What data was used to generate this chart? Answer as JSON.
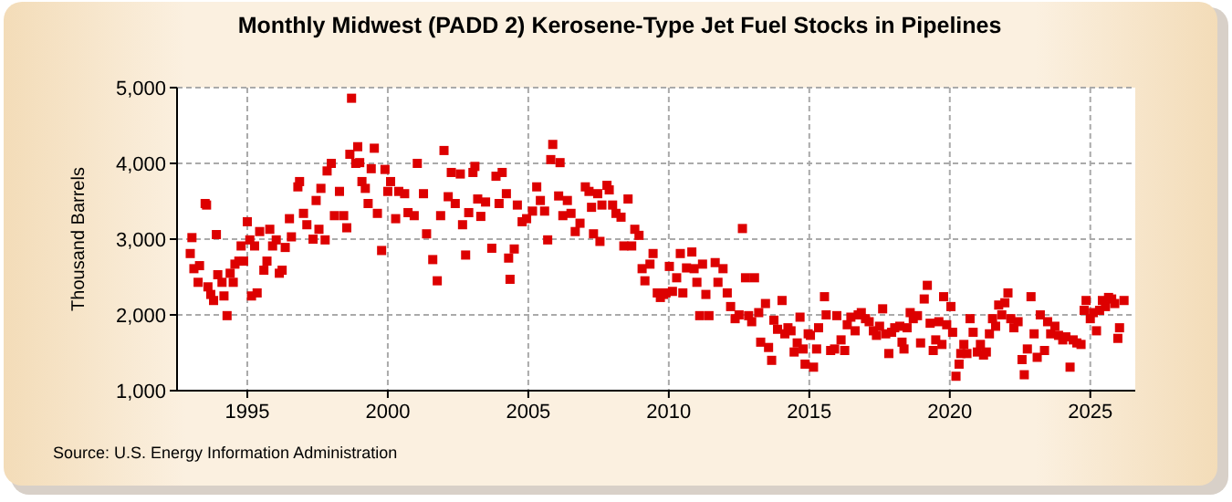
{
  "chart_data": {
    "type": "scatter",
    "title": "Monthly Midwest (PADD 2) Kerosene-Type Jet Fuel Stocks in Pipelines",
    "ylabel": "Thousand Barrels",
    "annotations": [
      "Source: U.S. Energy Information Administration"
    ],
    "xlim": [
      1992.5,
      2026.6
    ],
    "xticks": [
      1995,
      2000,
      2005,
      2010,
      2015,
      2020,
      2025
    ],
    "ylim": [
      1000,
      5000
    ],
    "yticks": [
      {
        "value": 1000,
        "label": "1,000"
      },
      {
        "value": 2000,
        "label": "2,000"
      },
      {
        "value": 3000,
        "label": "3,000"
      },
      {
        "value": 4000,
        "label": "4,000"
      },
      {
        "value": 5000,
        "label": "5,000"
      }
    ],
    "grid": true,
    "marker": "square",
    "series": [
      {
        "color": "#dd0000",
        "x": [
          1992.97,
          1993.03,
          1993.1,
          1993.25,
          1993.3,
          1993.5,
          1993.55,
          1993.6,
          1993.7,
          1993.8,
          1993.9,
          1993.95,
          1994.1,
          1994.17,
          1994.28,
          1994.39,
          1994.5,
          1994.56,
          1994.7,
          1994.78,
          1994.87,
          1995.0,
          1995.09,
          1995.15,
          1995.26,
          1995.35,
          1995.44,
          1995.59,
          1995.7,
          1995.8,
          1995.9,
          1996.03,
          1996.14,
          1996.24,
          1996.35,
          1996.5,
          1996.57,
          1996.8,
          1996.86,
          1997.0,
          1997.12,
          1997.34,
          1997.45,
          1997.55,
          1997.62,
          1997.77,
          1997.84,
          1997.99,
          1998.1,
          1998.28,
          1998.43,
          1998.54,
          1998.65,
          1998.71,
          1998.86,
          1998.93,
          1999.0,
          1999.08,
          1999.2,
          1999.3,
          1999.41,
          1999.52,
          1999.63,
          1999.78,
          1999.9,
          2000.0,
          2000.1,
          2000.28,
          2000.39,
          2000.6,
          2000.72,
          2000.94,
          2001.05,
          2001.27,
          2001.38,
          2001.6,
          2001.76,
          2001.88,
          2002.0,
          2002.15,
          2002.26,
          2002.4,
          2002.58,
          2002.66,
          2002.77,
          2002.88,
          2003.03,
          2003.1,
          2003.2,
          2003.31,
          2003.48,
          2003.7,
          2003.85,
          2003.96,
          2004.07,
          2004.22,
          2004.3,
          2004.35,
          2004.5,
          2004.61,
          2004.78,
          2004.94,
          2005.15,
          2005.3,
          2005.43,
          2005.58,
          2005.69,
          2005.8,
          2005.87,
          2006.08,
          2006.13,
          2006.23,
          2006.39,
          2006.52,
          2006.67,
          2006.84,
          2007.03,
          2007.16,
          2007.25,
          2007.32,
          2007.47,
          2007.55,
          2007.62,
          2007.8,
          2007.88,
          2008.0,
          2008.12,
          2008.3,
          2008.4,
          2008.55,
          2008.68,
          2008.79,
          2008.94,
          2009.05,
          2009.15,
          2009.33,
          2009.44,
          2009.59,
          2009.7,
          2009.81,
          2009.9,
          2010.02,
          2010.13,
          2010.28,
          2010.41,
          2010.5,
          2010.63,
          2010.82,
          2010.9,
          2011.0,
          2011.1,
          2011.2,
          2011.32,
          2011.43,
          2011.65,
          2011.75,
          2011.93,
          2012.08,
          2012.2,
          2012.36,
          2012.5,
          2012.62,
          2012.73,
          2012.84,
          2012.95,
          2013.05,
          2013.2,
          2013.27,
          2013.44,
          2013.55,
          2013.66,
          2013.74,
          2013.87,
          2014.03,
          2014.13,
          2014.24,
          2014.35,
          2014.46,
          2014.57,
          2014.67,
          2014.78,
          2014.85,
          2014.96,
          2015.04,
          2015.15,
          2015.26,
          2015.33,
          2015.54,
          2015.6,
          2015.76,
          2015.9,
          2015.98,
          2016.13,
          2016.26,
          2016.35,
          2016.48,
          2016.63,
          2016.74,
          2016.85,
          2017.0,
          2017.13,
          2017.28,
          2017.39,
          2017.5,
          2017.61,
          2017.72,
          2017.83,
          2017.93,
          2018.04,
          2018.22,
          2018.3,
          2018.37,
          2018.48,
          2018.59,
          2018.7,
          2018.85,
          2018.96,
          2019.09,
          2019.2,
          2019.3,
          2019.41,
          2019.5,
          2019.61,
          2019.72,
          2019.78,
          2019.89,
          2020.04,
          2020.1,
          2020.22,
          2020.33,
          2020.39,
          2020.5,
          2020.61,
          2020.72,
          2020.83,
          2020.98,
          2021.09,
          2021.2,
          2021.3,
          2021.41,
          2021.52,
          2021.63,
          2021.74,
          2021.85,
          2021.96,
          2022.07,
          2022.17,
          2022.28,
          2022.43,
          2022.57,
          2022.65,
          2022.76,
          2022.89,
          2023.0,
          2023.11,
          2023.22,
          2023.37,
          2023.48,
          2023.59,
          2023.74,
          2023.87,
          2024.02,
          2024.13,
          2024.28,
          2024.39,
          2024.52,
          2024.67,
          2024.78,
          2024.85,
          2025.0,
          2025.11,
          2025.22,
          2025.33,
          2025.43,
          2025.54,
          2025.65,
          2025.76,
          2025.87,
          2025.98,
          2026.04,
          2026.2
        ],
        "values": [
          2810,
          3020,
          2610,
          2430,
          2650,
          3470,
          3450,
          2370,
          2270,
          2190,
          3060,
          2530,
          2430,
          2250,
          1990,
          2550,
          2430,
          2670,
          2710,
          2910,
          2710,
          3230,
          2990,
          2250,
          2910,
          2290,
          3100,
          2590,
          2710,
          3130,
          2910,
          2990,
          2550,
          2590,
          2890,
          3270,
          3030,
          3690,
          3760,
          3340,
          3190,
          3000,
          3510,
          3130,
          3670,
          2990,
          3900,
          4000,
          3310,
          3630,
          3310,
          3150,
          4120,
          4860,
          4000,
          4220,
          4010,
          3760,
          3670,
          3470,
          3930,
          4200,
          3340,
          2850,
          3920,
          3630,
          3760,
          3270,
          3630,
          3600,
          3350,
          3310,
          4000,
          3600,
          3070,
          2730,
          2450,
          3310,
          4170,
          3560,
          3880,
          3470,
          3860,
          3190,
          2790,
          3350,
          3880,
          3960,
          3530,
          3300,
          3490,
          2880,
          3830,
          3470,
          3880,
          3600,
          2750,
          2470,
          2870,
          3450,
          3230,
          3270,
          3370,
          3690,
          3510,
          3370,
          2990,
          4050,
          4250,
          3570,
          4010,
          3310,
          3510,
          3340,
          3100,
          3210,
          3690,
          3630,
          3420,
          3070,
          3600,
          2970,
          3450,
          3710,
          3650,
          3450,
          3340,
          3290,
          2910,
          3530,
          2910,
          3130,
          3050,
          2610,
          2450,
          2670,
          2810,
          2290,
          2230,
          2270,
          2290,
          2640,
          2310,
          2490,
          2810,
          2290,
          2620,
          2830,
          2610,
          2430,
          1990,
          2670,
          2270,
          1990,
          2690,
          2430,
          2610,
          2290,
          2110,
          1950,
          2000,
          3140,
          2490,
          1990,
          1910,
          2490,
          2030,
          1640,
          2150,
          1570,
          1400,
          1930,
          1810,
          2190,
          1750,
          1830,
          1790,
          1510,
          1630,
          1970,
          1550,
          1350,
          1750,
          1730,
          1310,
          1550,
          1830,
          2240,
          2000,
          1530,
          1550,
          1990,
          1670,
          1530,
          1870,
          1970,
          1790,
          2000,
          2030,
          1950,
          1910,
          1790,
          1730,
          1850,
          2080,
          1750,
          1490,
          1770,
          1830,
          1850,
          1640,
          1550,
          1830,
          2030,
          1950,
          1990,
          1630,
          2210,
          2390,
          1890,
          1530,
          1670,
          1910,
          1610,
          2240,
          1870,
          2110,
          1770,
          1190,
          1350,
          1490,
          1610,
          1490,
          1950,
          1770,
          1510,
          1610,
          1470,
          1510,
          1750,
          1950,
          1850,
          2130,
          2000,
          2160,
          2290,
          1950,
          1830,
          1910,
          1410,
          1210,
          1550,
          2240,
          1750,
          1440,
          2000,
          1530,
          1910,
          1750,
          1850,
          1730,
          1670,
          1710,
          1310,
          1670,
          1630,
          1610,
          2060,
          2190,
          1950,
          2030,
          1790,
          2060,
          2190,
          2110,
          2230,
          2210,
          2150,
          1690,
          1830,
          2190
        ]
      }
    ]
  }
}
